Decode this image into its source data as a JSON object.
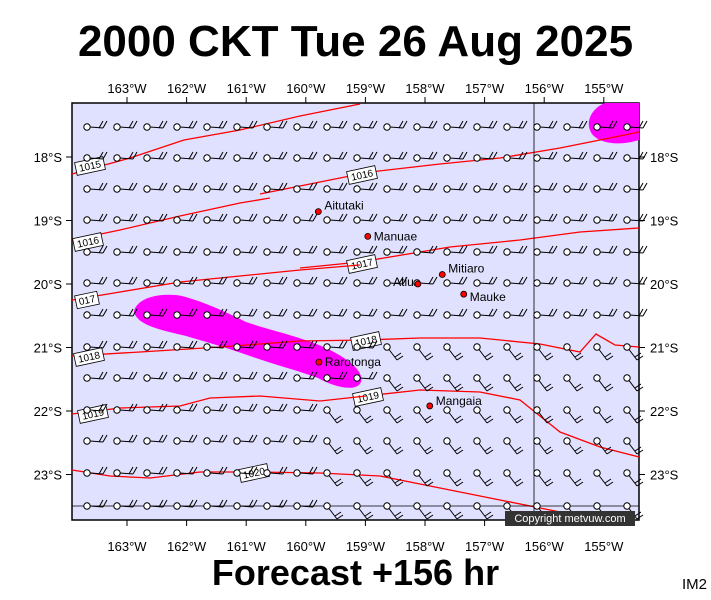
{
  "header": {
    "title": "2000 CKT Tue 26 Aug 2025"
  },
  "footer": {
    "forecast": "Forecast +156 hr",
    "code": "IM2",
    "credit": "Copyright metvuw.com"
  },
  "axes": {
    "lon_labels": [
      "163°W",
      "162°W",
      "161°W",
      "160°W",
      "159°W",
      "158°W",
      "157°W",
      "156°W",
      "155°W"
    ],
    "lat_labels": [
      "18°S",
      "19°S",
      "20°S",
      "21°S",
      "22°S",
      "23°S"
    ]
  },
  "places": [
    {
      "name": "Aitutaki",
      "lon": -159.79,
      "lat": -18.86
    },
    {
      "name": "Manuae",
      "lon": -158.96,
      "lat": -19.25
    },
    {
      "name": "Mitiaro",
      "lon": -157.71,
      "lat": -19.85
    },
    {
      "name": "Atiu",
      "lon": -158.12,
      "lat": -20.0
    },
    {
      "name": "Mauke",
      "lon": -157.35,
      "lat": -20.16
    },
    {
      "name": "Rarotonga",
      "lon": -159.78,
      "lat": -21.23
    },
    {
      "name": "Mangaia",
      "lon": -157.92,
      "lat": -21.92
    }
  ],
  "isobars": [
    {
      "label": "1015"
    },
    {
      "label": "1016"
    },
    {
      "label": "1016"
    },
    {
      "label": "1017"
    },
    {
      "label": "017"
    },
    {
      "label": "1018"
    },
    {
      "label": "1018"
    },
    {
      "label": "1019"
    },
    {
      "label": "1019"
    },
    {
      "label": "1020"
    }
  ],
  "colors": {
    "map_fill": "#e0e0ff",
    "isobar": "#ff0000",
    "rain": "#ff00ff",
    "place_dot": "#ff0000",
    "wind": "#000000"
  }
}
